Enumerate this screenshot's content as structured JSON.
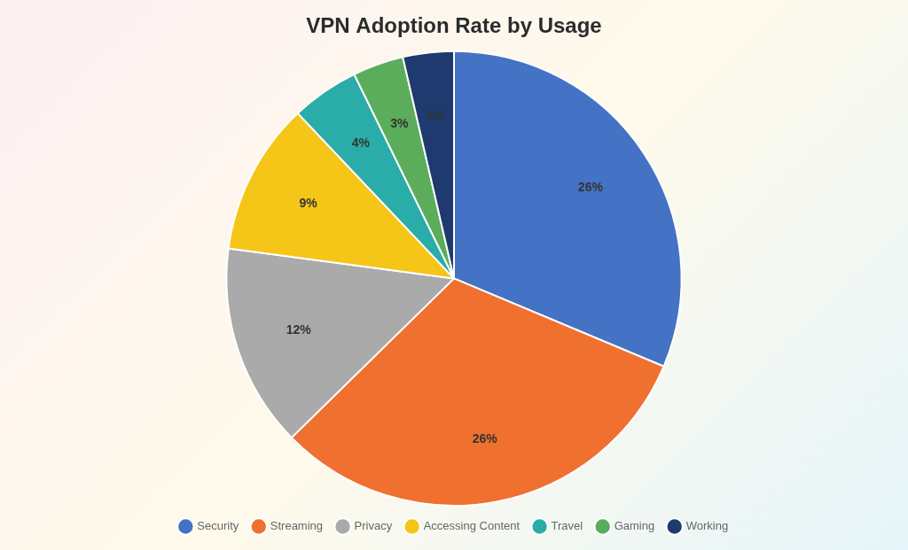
{
  "chart_data": {
    "type": "pie",
    "title": "VPN Adoption Rate by Usage",
    "categories": [
      "Security",
      "Streaming",
      "Privacy",
      "Accessing Content",
      "Travel",
      "Gaming",
      "Working"
    ],
    "values": [
      26,
      26,
      12,
      9,
      4,
      3,
      3
    ],
    "value_labels": [
      "26%",
      "26%",
      "12%",
      "9%",
      "4%",
      "3%",
      "3%"
    ],
    "colors": [
      "#4472C4",
      "#F07030",
      "#AAAAAA",
      "#F5C518",
      "#2AADA8",
      "#5BAD5C",
      "#1E3A6E"
    ],
    "data_labels": true,
    "legend": "bottom"
  }
}
